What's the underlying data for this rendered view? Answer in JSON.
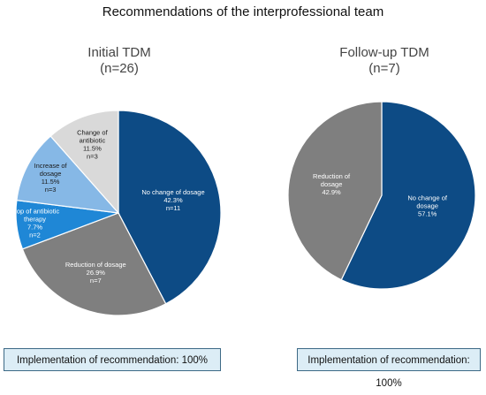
{
  "title": "Recommendations of the interprofessional team",
  "chart_data": [
    {
      "type": "pie",
      "title_line1": "Initial TDM",
      "title_line2": "(n=26)",
      "slices": [
        {
          "label": [
            "No change of dosage",
            "42.3%",
            "n=11"
          ],
          "value": 42.3,
          "count": 11,
          "color": "#0d4b85",
          "text_color": "#ffffff"
        },
        {
          "label": [
            "Reduction of dosage",
            "26.9%",
            "n=7"
          ],
          "value": 26.9,
          "count": 7,
          "color": "#7f7f7f",
          "text_color": "#ffffff"
        },
        {
          "label": [
            "Stop of antibiotic",
            "therapy",
            "7.7%",
            "n=2"
          ],
          "value": 7.7,
          "count": 2,
          "color": "#1f87d6",
          "text_color": "#ffffff"
        },
        {
          "label": [
            "Increase of",
            "dosage",
            "11.5%",
            "n=3"
          ],
          "value": 11.5,
          "count": 3,
          "color": "#86b8e6",
          "text_color": "#1a1a1a"
        },
        {
          "label": [
            "Change of",
            "antibiotic",
            "11.5%",
            "n=3"
          ],
          "value": 11.5,
          "count": 3,
          "color": "#d9d9d9",
          "text_color": "#1a1a1a"
        }
      ],
      "implementation": "Implementation of recommendation: 100%"
    },
    {
      "type": "pie",
      "title_line1": "Follow-up TDM",
      "title_line2": "(n=7)",
      "slices": [
        {
          "label": [
            "No change of",
            "dosage",
            "57.1%"
          ],
          "value": 57.1,
          "color": "#0d4b85",
          "text_color": "#ffffff"
        },
        {
          "label": [
            "Reduction of",
            "dosage",
            "42.9%"
          ],
          "value": 42.9,
          "color": "#7f7f7f",
          "text_color": "#ffffff"
        }
      ],
      "implementation": "Implementation of recommendation: 100%"
    }
  ]
}
